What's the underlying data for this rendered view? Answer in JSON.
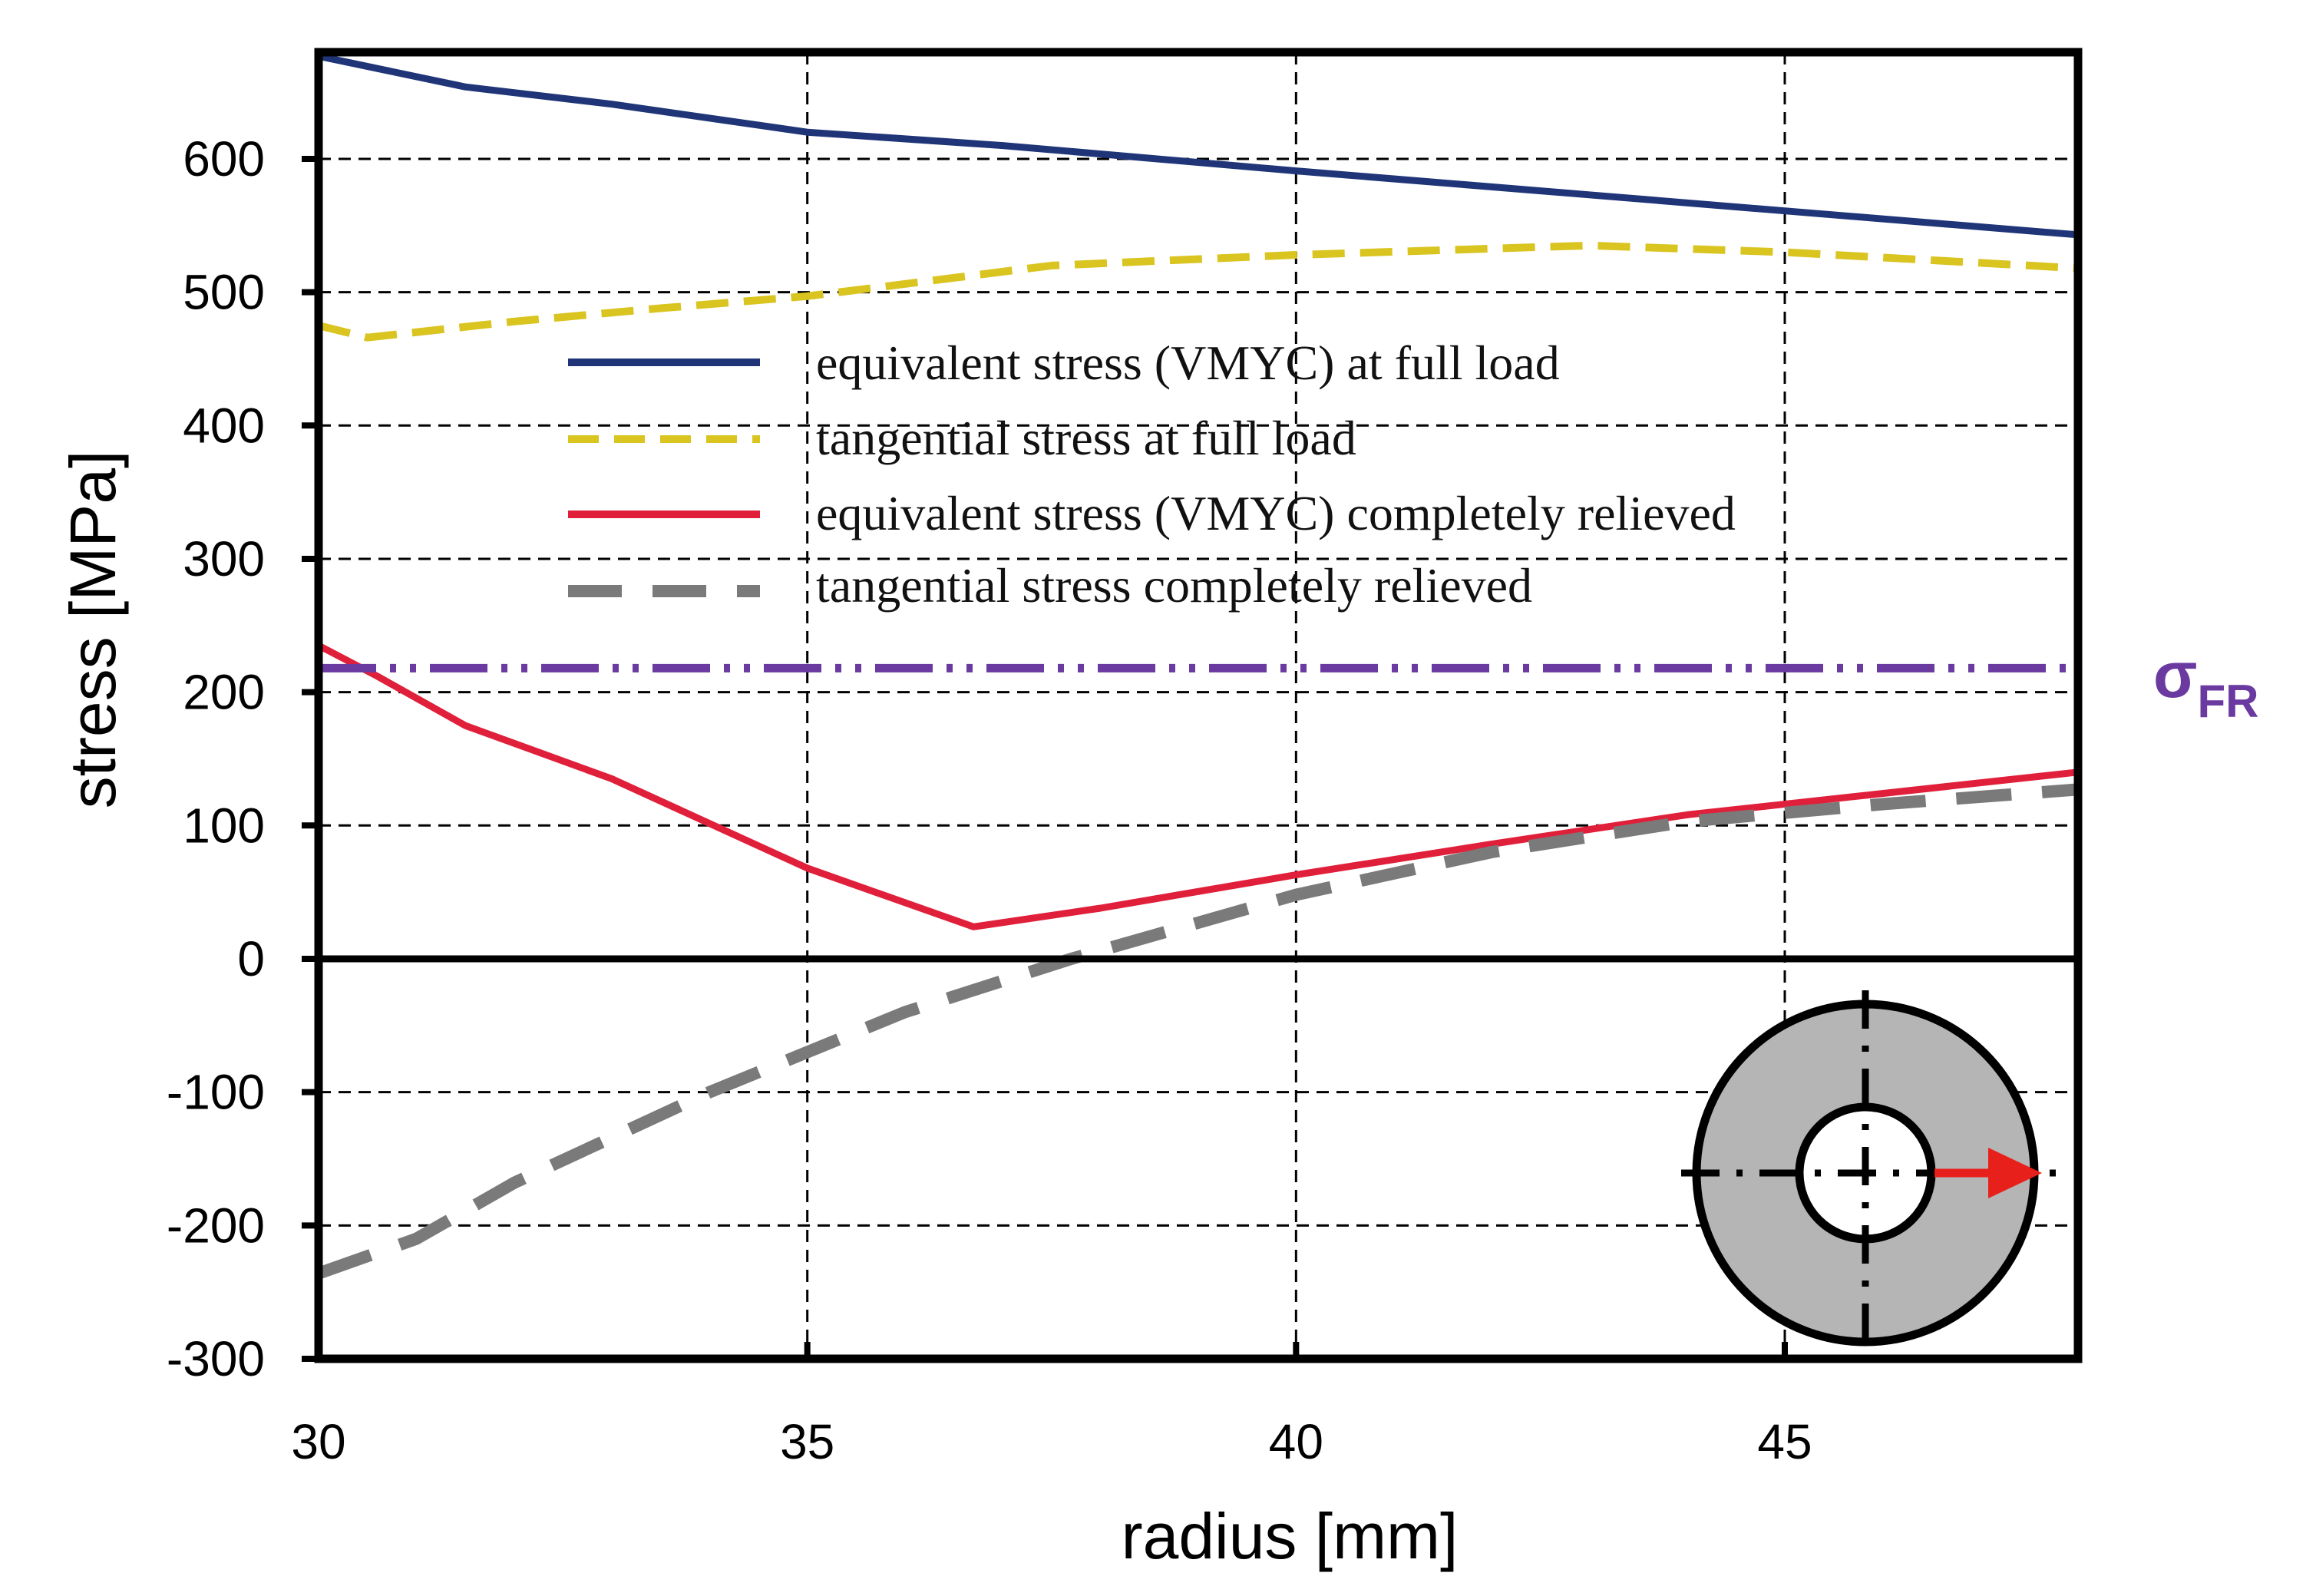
{
  "chart_data": {
    "type": "line",
    "title": "",
    "xlabel": "radius [mm]",
    "ylabel": "stress [MPa]",
    "xlim": [
      30,
      48
    ],
    "ylim": [
      -300,
      680
    ],
    "x_ticks": [
      30,
      35,
      40,
      45
    ],
    "y_ticks": [
      -300,
      -200,
      -100,
      0,
      100,
      200,
      300,
      400,
      500,
      600
    ],
    "x_tick_labels": [
      "30",
      "35",
      "40",
      "45"
    ],
    "y_tick_labels": [
      "-300",
      "-200",
      "-100",
      "0",
      "100",
      "200",
      "300",
      "400",
      "500",
      "600"
    ],
    "grid": true,
    "legend_position": "upper-center",
    "series": [
      {
        "name": "equivalent stress (VMYC) at full load",
        "color": "#1f3577",
        "style": "solid",
        "x": [
          30,
          31.5,
          33,
          35,
          37,
          40,
          43,
          45,
          48
        ],
        "y": [
          677,
          654,
          641,
          620,
          610,
          591,
          573,
          561,
          543
        ]
      },
      {
        "name": "tangential stress at full load",
        "color": "#d9c420",
        "style": "dashed",
        "x": [
          30,
          30.5,
          32,
          33.5,
          35,
          36.2,
          37.5,
          40,
          43,
          45,
          48
        ],
        "y": [
          475,
          466,
          478,
          488,
          497,
          508,
          520,
          528,
          535,
          530,
          518
        ]
      },
      {
        "name": "equivalent stress (VMYC) completely relieved",
        "color": "#e0203a",
        "style": "solid",
        "x": [
          30,
          30.6,
          31.5,
          33,
          35,
          36.7,
          38,
          40,
          42,
          44,
          46,
          48
        ],
        "y": [
          235,
          212,
          175,
          135,
          68,
          24,
          38,
          63,
          86,
          108,
          124,
          140
        ]
      },
      {
        "name": "tangential stress completely relieved",
        "color": "#7a7a7a",
        "style": "long-dashed",
        "x": [
          30,
          31,
          32,
          34,
          36,
          37.7,
          40,
          42,
          44,
          46,
          48
        ],
        "y": [
          -236,
          -210,
          -168,
          -100,
          -40,
          0,
          48,
          80,
          103,
          116,
          127
        ]
      }
    ],
    "reference_line": {
      "label_symbol": "σ",
      "label_subscript": "FR",
      "value": 218,
      "color": "#6a3aa0",
      "style": "dash-dot-dot"
    },
    "inset_icon": "annular-cross-section-with-radial-arrow-icon"
  }
}
